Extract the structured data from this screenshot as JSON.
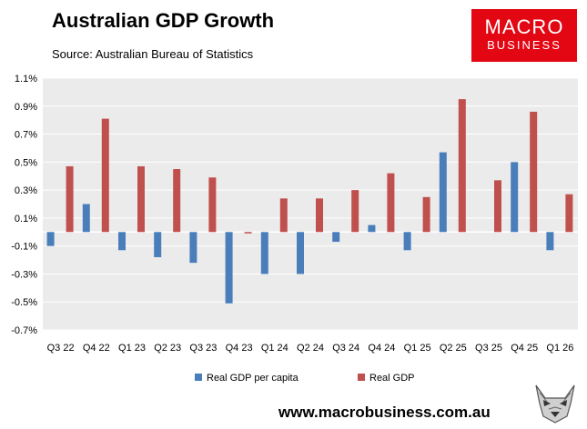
{
  "header": {
    "title": "Australian GDP Growth",
    "subtitle": "Source: Australian Bureau of Statistics"
  },
  "logo": {
    "line1": "MACRO",
    "line2": "BUSINESS",
    "color": "#e30613"
  },
  "footer": {
    "url": "www.macrobusiness.com.au"
  },
  "colors": {
    "plot_bg": "#ebebeb",
    "grid": "#ffffff",
    "per_capita": "#4a7ebb",
    "real_gdp": "#c0504d"
  },
  "chart_data": {
    "type": "bar",
    "categories": [
      "Q3 22",
      "Q4 22",
      "Q1 23",
      "Q2 23",
      "Q3 23",
      "Q4 23",
      "Q1 24",
      "Q2 24",
      "Q3 24",
      "Q4 24",
      "Q1 25",
      "Q2 25",
      "Q3 25",
      "Q4 25",
      "Q1 26"
    ],
    "series": [
      {
        "name": "Real GDP per capita",
        "color": "#4a7ebb",
        "values": [
          -0.1,
          0.2,
          -0.13,
          -0.18,
          -0.22,
          -0.51,
          -0.3,
          -0.3,
          -0.07,
          0.05,
          -0.13,
          0.57,
          0.0,
          0.5,
          -0.13
        ]
      },
      {
        "name": "Real GDP",
        "color": "#c0504d",
        "values": [
          0.47,
          0.81,
          0.47,
          0.45,
          0.39,
          -0.01,
          0.24,
          0.24,
          0.3,
          0.42,
          0.25,
          0.95,
          0.37,
          0.86,
          0.27
        ]
      }
    ],
    "yticks": [
      "1.1%",
      "0.9%",
      "0.7%",
      "0.5%",
      "0.3%",
      "0.1%",
      "-0.1%",
      "-0.3%",
      "-0.5%",
      "-0.7%"
    ],
    "ylim": [
      -0.7,
      1.1
    ],
    "legend_position": "bottom",
    "grid": true
  }
}
